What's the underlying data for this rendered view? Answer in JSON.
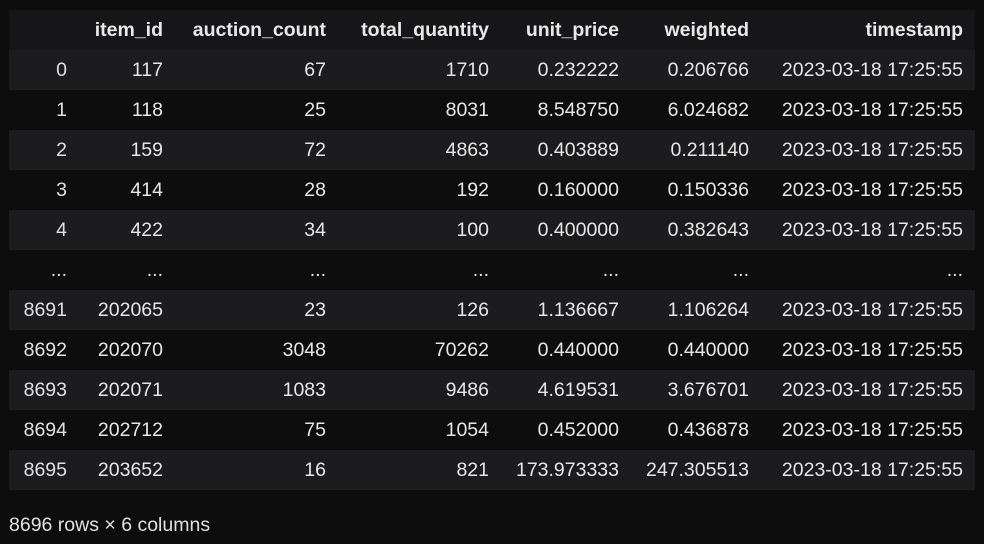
{
  "columns": [
    "",
    "item_id",
    "auction_count",
    "total_quantity",
    "unit_price",
    "weighted",
    "timestamp"
  ],
  "rows": [
    {
      "index": "0",
      "cells": [
        "117",
        "67",
        "1710",
        "0.232222",
        "0.206766",
        "2023-03-18 17:25:55"
      ]
    },
    {
      "index": "1",
      "cells": [
        "118",
        "25",
        "8031",
        "8.548750",
        "6.024682",
        "2023-03-18 17:25:55"
      ]
    },
    {
      "index": "2",
      "cells": [
        "159",
        "72",
        "4863",
        "0.403889",
        "0.211140",
        "2023-03-18 17:25:55"
      ]
    },
    {
      "index": "3",
      "cells": [
        "414",
        "28",
        "192",
        "0.160000",
        "0.150336",
        "2023-03-18 17:25:55"
      ]
    },
    {
      "index": "4",
      "cells": [
        "422",
        "34",
        "100",
        "0.400000",
        "0.382643",
        "2023-03-18 17:25:55"
      ]
    },
    {
      "index": "...",
      "cells": [
        "...",
        "...",
        "...",
        "...",
        "...",
        "..."
      ]
    },
    {
      "index": "8691",
      "cells": [
        "202065",
        "23",
        "126",
        "1.136667",
        "1.106264",
        "2023-03-18 17:25:55"
      ]
    },
    {
      "index": "8692",
      "cells": [
        "202070",
        "3048",
        "70262",
        "0.440000",
        "0.440000",
        "2023-03-18 17:25:55"
      ]
    },
    {
      "index": "8693",
      "cells": [
        "202071",
        "1083",
        "9486",
        "4.619531",
        "3.676701",
        "2023-03-18 17:25:55"
      ]
    },
    {
      "index": "8694",
      "cells": [
        "202712",
        "75",
        "1054",
        "0.452000",
        "0.436878",
        "2023-03-18 17:25:55"
      ]
    },
    {
      "index": "8695",
      "cells": [
        "203652",
        "16",
        "821",
        "173.973333",
        "247.305513",
        "2023-03-18 17:25:55"
      ]
    }
  ],
  "summary": "8696 rows × 6 columns",
  "colors": {
    "background": "#0d0d0e",
    "header_bg": "#161618",
    "stripe": "#1c1c1e",
    "text": "#e6e6e6"
  }
}
